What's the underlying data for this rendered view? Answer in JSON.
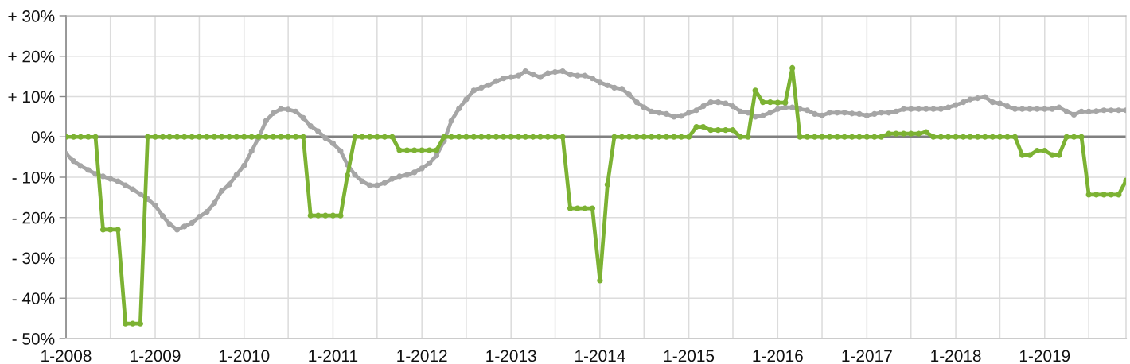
{
  "chart_data": {
    "type": "line",
    "x": [
      "2008-01",
      "2008-02",
      "2008-03",
      "2008-04",
      "2008-05",
      "2008-06",
      "2008-07",
      "2008-08",
      "2008-09",
      "2008-10",
      "2008-11",
      "2008-12",
      "2009-01",
      "2009-02",
      "2009-03",
      "2009-04",
      "2009-05",
      "2009-06",
      "2009-07",
      "2009-08",
      "2009-09",
      "2009-10",
      "2009-11",
      "2009-12",
      "2010-01",
      "2010-02",
      "2010-03",
      "2010-04",
      "2010-05",
      "2010-06",
      "2010-07",
      "2010-08",
      "2010-09",
      "2010-10",
      "2010-11",
      "2010-12",
      "2011-01",
      "2011-02",
      "2011-03",
      "2011-04",
      "2011-05",
      "2011-06",
      "2011-07",
      "2011-08",
      "2011-09",
      "2011-10",
      "2011-11",
      "2011-12",
      "2012-01",
      "2012-02",
      "2012-03",
      "2012-04",
      "2012-05",
      "2012-06",
      "2012-07",
      "2012-08",
      "2012-09",
      "2012-10",
      "2012-11",
      "2012-12",
      "2013-01",
      "2013-02",
      "2013-03",
      "2013-04",
      "2013-05",
      "2013-06",
      "2013-07",
      "2013-08",
      "2013-09",
      "2013-10",
      "2013-11",
      "2013-12",
      "2014-01",
      "2014-02",
      "2014-03",
      "2014-04",
      "2014-05",
      "2014-06",
      "2014-07",
      "2014-08",
      "2014-09",
      "2014-10",
      "2014-11",
      "2014-12",
      "2015-01",
      "2015-02",
      "2015-03",
      "2015-04",
      "2015-05",
      "2015-06",
      "2015-07",
      "2015-08",
      "2015-09",
      "2015-10",
      "2015-11",
      "2015-12",
      "2016-01",
      "2016-02",
      "2016-03",
      "2016-04",
      "2016-05",
      "2016-06",
      "2016-07",
      "2016-08",
      "2016-09",
      "2016-10",
      "2016-11",
      "2016-12",
      "2017-01",
      "2017-02",
      "2017-03",
      "2017-04",
      "2017-05",
      "2017-06",
      "2017-07",
      "2017-08",
      "2017-09",
      "2017-10",
      "2017-11",
      "2017-12",
      "2018-01",
      "2018-02",
      "2018-03",
      "2018-04",
      "2018-05",
      "2018-06",
      "2018-07",
      "2018-08",
      "2018-09",
      "2018-10",
      "2018-11",
      "2018-12",
      "2019-01",
      "2019-02",
      "2019-03",
      "2019-04",
      "2019-05",
      "2019-06",
      "2019-07",
      "2019-08",
      "2019-09",
      "2019-10",
      "2019-11",
      "2019-12"
    ],
    "series": [
      {
        "color": "#a6a6a6",
        "values": [
          -4.2,
          -6,
          -7.2,
          -8.2,
          -9.2,
          -9.8,
          -10.4,
          -11,
          -12,
          -13,
          -14.2,
          -15.4,
          -17,
          -19.6,
          -21.6,
          -23,
          -22.2,
          -21.3,
          -19.8,
          -18.6,
          -16.4,
          -13.4,
          -11.8,
          -9.4,
          -7.1,
          -3.5,
          -0.3,
          4,
          5.9,
          6.9,
          6.8,
          6.3,
          4.7,
          2.7,
          1.4,
          -0.3,
          -1.6,
          -3.5,
          -6.9,
          -9.4,
          -11,
          -12,
          -12,
          -11.4,
          -10.4,
          -9.8,
          -9.4,
          -8.8,
          -7.8,
          -6.5,
          -4.6,
          -1,
          4,
          7,
          9.3,
          11.5,
          12.2,
          12.8,
          13.8,
          14.5,
          14.8,
          15.2,
          16.3,
          15.5,
          14.8,
          15.8,
          16.1,
          16.3,
          15.5,
          15.2,
          15.2,
          14.5,
          13.5,
          12.8,
          12.2,
          11.9,
          10.5,
          8.6,
          7.3,
          6.3,
          6,
          5.7,
          5,
          5.2,
          6,
          6.6,
          7.6,
          8.6,
          8.6,
          8.3,
          7.6,
          6.3,
          6,
          5,
          5.3,
          6,
          6.9,
          7.3,
          7.3,
          6.9,
          6.6,
          5.7,
          5.3,
          6,
          6,
          6,
          5.8,
          5.7,
          5.3,
          5.7,
          6,
          6,
          6.3,
          6.9,
          6.9,
          6.9,
          6.9,
          6.9,
          6.9,
          7.3,
          7.9,
          8.6,
          9.3,
          9.6,
          9.9,
          8.6,
          8.3,
          7.6,
          6.9,
          6.9,
          6.9,
          6.9,
          6.9,
          6.9,
          7.3,
          6.3,
          5.5,
          6.3,
          6.3,
          6.4,
          6.6,
          6.6,
          6.6,
          6.6
        ]
      },
      {
        "color": "#7cb233",
        "values": [
          0,
          0,
          0,
          0,
          0,
          -23,
          -23,
          -23,
          -46.3,
          -46.3,
          -46.3,
          0,
          0,
          0,
          0,
          0,
          0,
          0,
          0,
          0,
          0,
          0,
          0,
          0,
          0,
          0,
          0,
          0,
          0,
          0,
          0,
          0,
          0,
          -19.5,
          -19.5,
          -19.5,
          -19.5,
          -19.5,
          -9.6,
          0,
          0,
          0,
          0,
          0,
          0,
          -3.3,
          -3.3,
          -3.3,
          -3.3,
          -3.3,
          -3.3,
          0,
          0,
          0,
          0,
          0,
          0,
          0,
          0,
          0,
          0,
          0,
          0,
          0,
          0,
          0,
          0,
          0,
          -17.7,
          -17.7,
          -17.7,
          -17.7,
          -35.6,
          -11.8,
          0,
          0,
          0,
          0,
          0,
          0,
          0,
          0,
          0,
          0,
          0,
          2.5,
          2.5,
          1.7,
          1.7,
          1.7,
          1.7,
          0,
          0,
          11.5,
          8.6,
          8.6,
          8.5,
          8.5,
          17.1,
          0,
          0,
          0,
          0,
          0,
          0,
          0,
          0,
          0,
          0,
          0,
          0,
          0.8,
          0.8,
          0.8,
          0.8,
          0.8,
          1.2,
          0,
          0,
          0,
          0,
          0,
          0,
          0,
          0,
          0,
          0,
          0,
          0,
          -4.5,
          -4.5,
          -3.4,
          -3.4,
          -4.5,
          -4.5,
          0,
          0,
          0,
          -14.3,
          -14.3,
          -14.3,
          -14.3,
          -14.3,
          -10.8
        ]
      }
    ],
    "xlim": [
      "2008-01",
      "2019-12"
    ],
    "xticks": [
      {
        "value": "2008-01",
        "label": "1-2008"
      },
      {
        "value": "2008-07",
        "label": null
      },
      {
        "value": "2009-01",
        "label": "1-2009"
      },
      {
        "value": "2009-07",
        "label": null
      },
      {
        "value": "2010-01",
        "label": "1-2010"
      },
      {
        "value": "2010-07",
        "label": null
      },
      {
        "value": "2011-01",
        "label": "1-2011"
      },
      {
        "value": "2011-07",
        "label": null
      },
      {
        "value": "2012-01",
        "label": "1-2012"
      },
      {
        "value": "2012-07",
        "label": null
      },
      {
        "value": "2013-01",
        "label": "1-2013"
      },
      {
        "value": "2013-07",
        "label": null
      },
      {
        "value": "2014-01",
        "label": "1-2014"
      },
      {
        "value": "2014-07",
        "label": null
      },
      {
        "value": "2015-01",
        "label": "1-2015"
      },
      {
        "value": "2015-07",
        "label": null
      },
      {
        "value": "2016-01",
        "label": "1-2016"
      },
      {
        "value": "2016-07",
        "label": null
      },
      {
        "value": "2017-01",
        "label": "1-2017"
      },
      {
        "value": "2017-07",
        "label": null
      },
      {
        "value": "2018-01",
        "label": "1-2018"
      },
      {
        "value": "2018-07",
        "label": null
      },
      {
        "value": "2019-01",
        "label": "1-2019"
      },
      {
        "value": "2019-07",
        "label": null
      }
    ],
    "ylim": [
      -50,
      30
    ],
    "yticks": [
      {
        "value": -50,
        "label": "- 50%"
      },
      {
        "value": -40,
        "label": "- 40%"
      },
      {
        "value": -30,
        "label": "- 30%"
      },
      {
        "value": -20,
        "label": "- 20%"
      },
      {
        "value": -10,
        "label": "- 10%"
      },
      {
        "value": 0,
        "label": "0%"
      },
      {
        "value": 10,
        "label": "+ 10%"
      },
      {
        "value": 20,
        "label": "+ 20%"
      },
      {
        "value": 30,
        "label": "+ 30%"
      }
    ],
    "ref_lines": [
      {
        "axis": "y",
        "value": 0,
        "color": "#808080"
      }
    ],
    "grid": true,
    "marker": "circle",
    "line_style": "solid"
  }
}
